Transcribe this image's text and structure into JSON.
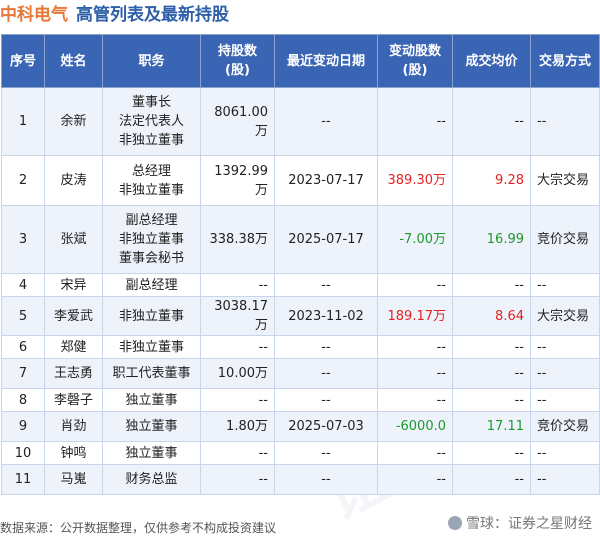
{
  "title": {
    "company": "中科电气",
    "subtitle": "高管列表及最新持股"
  },
  "columns": [
    "序号",
    "姓名",
    "职务",
    "持股数\n(股)",
    "最近变动日期",
    "变动股数\n(股)",
    "成交均价",
    "交易方式"
  ],
  "rows": [
    {
      "no": "1",
      "name": "余新",
      "roles": [
        "董事长",
        "法定代表人",
        "非独立董事"
      ],
      "shares": "8061.00万",
      "date": "--",
      "change": "--",
      "change_color": "",
      "price": "--",
      "price_color": "",
      "method": "--"
    },
    {
      "no": "2",
      "name": "皮涛",
      "roles": [
        "总经理",
        "非独立董事"
      ],
      "shares": "1392.99万",
      "date": "2023-07-17",
      "change": "389.30万",
      "change_color": "red",
      "price": "9.28",
      "price_color": "red",
      "method": "大宗交易"
    },
    {
      "no": "3",
      "name": "张斌",
      "roles": [
        "副总经理",
        "非独立董事",
        "董事会秘书"
      ],
      "shares": "338.38万",
      "date": "2025-07-17",
      "change": "-7.00万",
      "change_color": "green",
      "price": "16.99",
      "price_color": "green",
      "method": "竞价交易"
    },
    {
      "no": "4",
      "name": "宋异",
      "roles": [
        "副总经理"
      ],
      "shares": "--",
      "date": "--",
      "change": "--",
      "change_color": "",
      "price": "--",
      "price_color": "",
      "method": "--"
    },
    {
      "no": "5",
      "name": "李爱武",
      "roles": [
        "非独立董事"
      ],
      "shares": "3038.17万",
      "date": "2023-11-02",
      "change": "189.17万",
      "change_color": "red",
      "price": "8.64",
      "price_color": "red",
      "method": "大宗交易"
    },
    {
      "no": "6",
      "name": "郑健",
      "roles": [
        "非独立董事"
      ],
      "shares": "--",
      "date": "--",
      "change": "--",
      "change_color": "",
      "price": "--",
      "price_color": "",
      "method": "--"
    },
    {
      "no": "7",
      "name": "王志勇",
      "roles": [
        "职工代表董事"
      ],
      "shares": "10.00万",
      "date": "--",
      "change": "--",
      "change_color": "",
      "price": "--",
      "price_color": "",
      "method": "--"
    },
    {
      "no": "8",
      "name": "李磬子",
      "roles": [
        "独立董事"
      ],
      "shares": "--",
      "date": "--",
      "change": "--",
      "change_color": "",
      "price": "--",
      "price_color": "",
      "method": "--"
    },
    {
      "no": "9",
      "name": "肖劲",
      "roles": [
        "独立董事"
      ],
      "shares": "1.80万",
      "date": "2025-07-03",
      "change": "-6000.0",
      "change_color": "green",
      "price": "17.11",
      "price_color": "green",
      "method": "竞价交易"
    },
    {
      "no": "10",
      "name": "钟鸣",
      "roles": [
        "独立董事"
      ],
      "shares": "--",
      "date": "--",
      "change": "--",
      "change_color": "",
      "price": "--",
      "price_color": "",
      "method": "--"
    },
    {
      "no": "11",
      "name": "马嵬",
      "roles": [
        "财务总监"
      ],
      "shares": "--",
      "date": "--",
      "change": "--",
      "change_color": "",
      "price": "--",
      "price_color": "",
      "method": "--"
    }
  ],
  "footer": {
    "source": "数据来源：公开数据整理，仅供参考不构成投资建议",
    "brand": "雪球：证券之星财经"
  },
  "watermark": "证券之星",
  "colors": {
    "header_bg": "#3a65b4",
    "company": "#e8793a",
    "subtitle": "#2d5fa8",
    "up": "#e52222",
    "down": "#1a9a2b",
    "row_alt": "#eef3fb"
  }
}
